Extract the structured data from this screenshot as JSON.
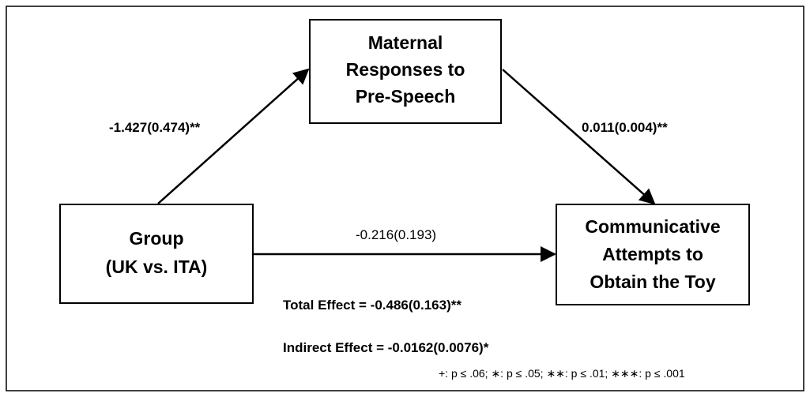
{
  "nodes": [
    {
      "label": [
        "Maternal",
        "Responses to",
        "Pre-Speech"
      ]
    },
    {
      "label": [
        "Group",
        "(UK vs. ITA)"
      ]
    },
    {
      "label": [
        "Communicative",
        "Attempts to",
        "Obtain the Toy"
      ]
    }
  ],
  "paths": {
    "a": "-1.427(0.474)**",
    "b": "0.011(0.004)**",
    "c": "-0.216(0.193)"
  },
  "effects": {
    "total": "Total Effect = -0.486(0.163)**",
    "indirect": "Indirect Effect = -0.0162(0.0076)*"
  },
  "legend": "+: p ≤ .06; ∗: p ≤ .05; ∗∗: p ≤ .01; ∗∗∗: p ≤ .001"
}
